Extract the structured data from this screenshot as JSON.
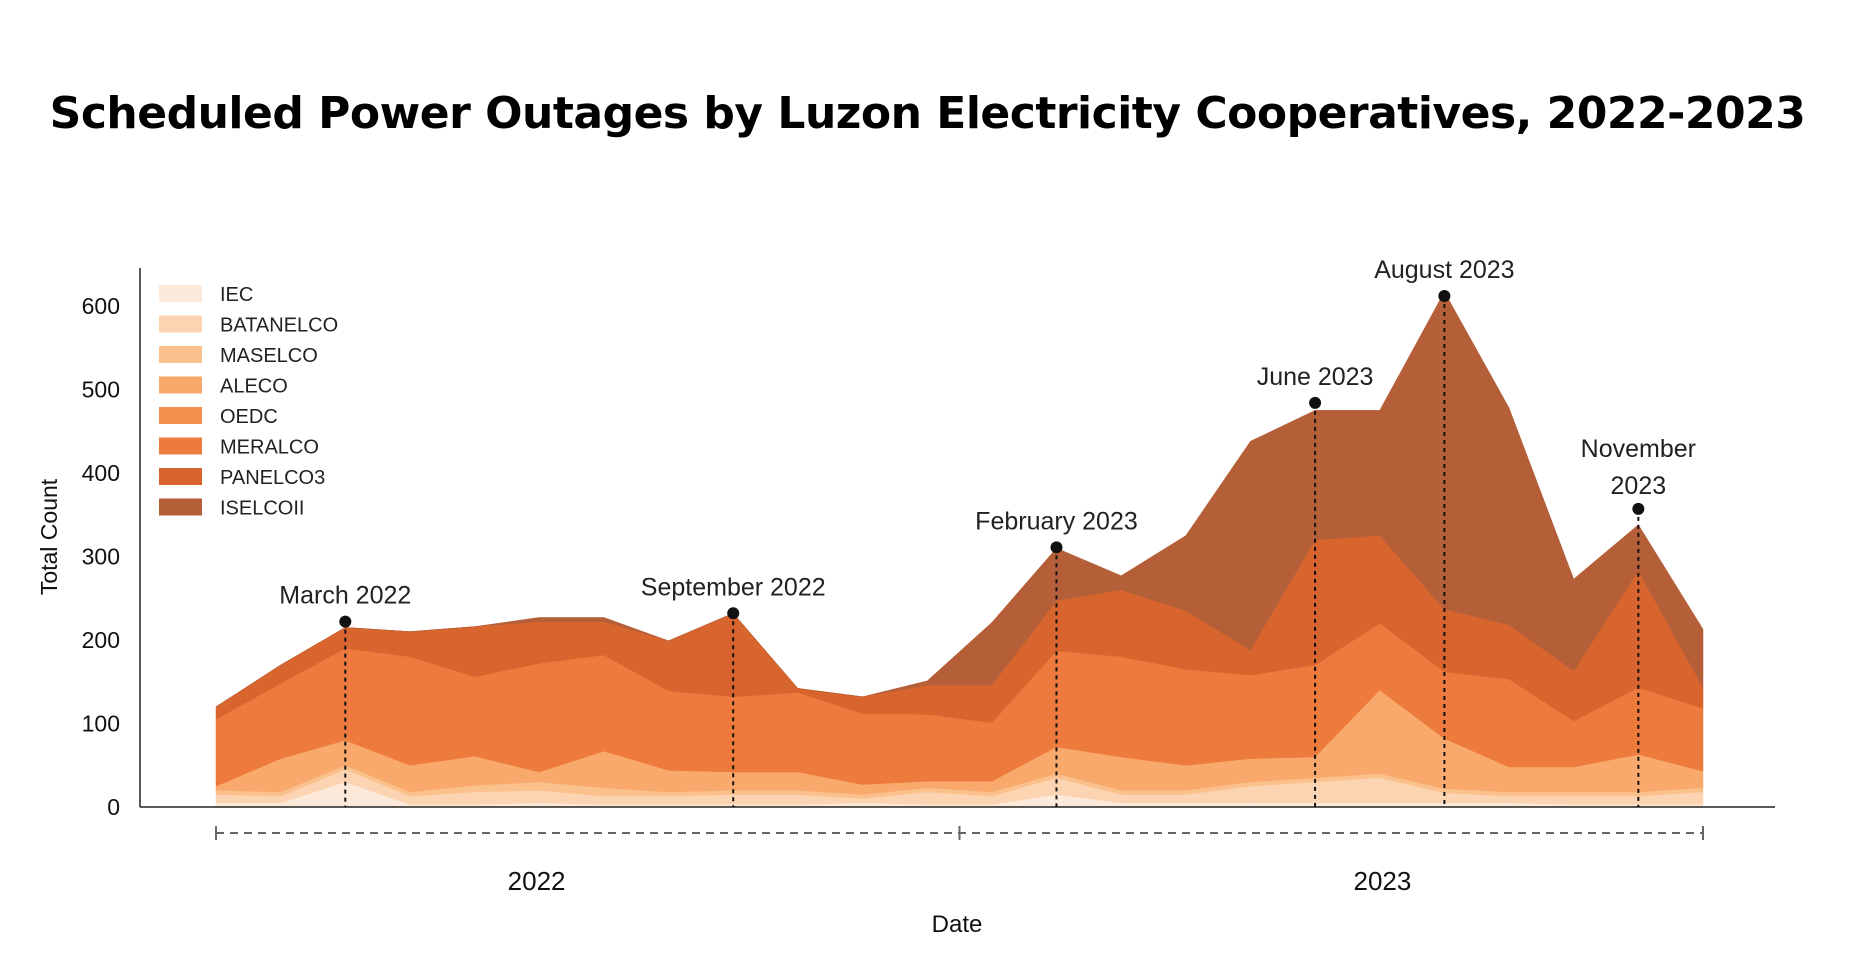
{
  "chart_data": {
    "type": "area",
    "title": "Scheduled Power Outages by Luzon Electricity Cooperatives, 2022-2023",
    "xlabel": "Date",
    "ylabel": "Total Count",
    "ylim": [
      0,
      650
    ],
    "yticks": [
      "0",
      "100",
      "200",
      "300",
      "400",
      "500",
      "600"
    ],
    "x": [
      "2022-01",
      "2022-02",
      "2022-03",
      "2022-04",
      "2022-05",
      "2022-06",
      "2022-07",
      "2022-08",
      "2022-09",
      "2022-10",
      "2022-11",
      "2022-12",
      "2023-01",
      "2023-02",
      "2023-03",
      "2023-04",
      "2023-05",
      "2023-06",
      "2023-07",
      "2023-08",
      "2023-09",
      "2023-10",
      "2023-11",
      "2023-12"
    ],
    "year_labels": [
      {
        "label": "2022",
        "start": "2022-01",
        "end": "2022-12"
      },
      {
        "label": "2023",
        "start": "2023-01",
        "end": "2023-12"
      }
    ],
    "legend_position": "top-left",
    "series": [
      {
        "name": "IEC",
        "color": "#fde9d9",
        "values": [
          5,
          5,
          30,
          3,
          3,
          5,
          3,
          3,
          3,
          3,
          5,
          3,
          3,
          15,
          5,
          5,
          5,
          5,
          5,
          5,
          5,
          3,
          3,
          3
        ]
      },
      {
        "name": "BATANELCO",
        "color": "#fcd4b2",
        "values": [
          10,
          8,
          15,
          10,
          15,
          15,
          10,
          10,
          12,
          12,
          5,
          15,
          10,
          20,
          10,
          10,
          20,
          25,
          30,
          12,
          8,
          10,
          10,
          15
        ]
      },
      {
        "name": "MASELCO",
        "color": "#fbc18c",
        "values": [
          5,
          5,
          5,
          5,
          8,
          10,
          10,
          5,
          5,
          5,
          5,
          5,
          5,
          5,
          5,
          5,
          5,
          5,
          5,
          5,
          5,
          5,
          5,
          5
        ]
      },
      {
        "name": "ALECO",
        "color": "#f8a96b",
        "values": [
          5,
          40,
          30,
          32,
          35,
          12,
          44,
          26,
          22,
          22,
          12,
          8,
          13,
          32,
          40,
          30,
          28,
          25,
          100,
          60,
          30,
          30,
          45,
          20
        ]
      },
      {
        "name": "OEDC",
        "color": "#f4914c",
        "values": [
          0,
          0,
          0,
          0,
          0,
          0,
          0,
          0,
          0,
          0,
          0,
          0,
          0,
          0,
          0,
          0,
          0,
          0,
          0,
          0,
          0,
          0,
          0,
          0
        ]
      },
      {
        "name": "MERALCO",
        "color": "#ec7b3d",
        "values": [
          80,
          90,
          110,
          130,
          95,
          130,
          115,
          95,
          90,
          95,
          85,
          80,
          70,
          115,
          120,
          115,
          100,
          110,
          80,
          80,
          105,
          55,
          80,
          75
        ]
      },
      {
        "name": "PANELCO3",
        "color": "#d9652e",
        "values": [
          15,
          22,
          25,
          30,
          60,
          50,
          40,
          60,
          100,
          5,
          20,
          35,
          45,
          60,
          80,
          70,
          30,
          150,
          105,
          75,
          65,
          60,
          140,
          25
        ]
      },
      {
        "name": "ISELCOII",
        "color": "#b55f39",
        "values": [
          0,
          0,
          0,
          0,
          0,
          5,
          5,
          0,
          0,
          0,
          0,
          5,
          75,
          63,
          17,
          90,
          250,
          155,
          150,
          380,
          260,
          110,
          55,
          70
        ]
      }
    ],
    "annotations": [
      {
        "label": "March 2022",
        "x": "2022-03",
        "y": 222
      },
      {
        "label": "September 2022",
        "x": "2022-09",
        "y": 232
      },
      {
        "label": "February 2023",
        "x": "2023-02",
        "y": 311
      },
      {
        "label": "June 2023",
        "x": "2023-06",
        "y": 484
      },
      {
        "label": "August 2023",
        "x": "2023-08",
        "y": 612
      },
      {
        "label": "November 2023",
        "x": "2023-11",
        "y": 357
      }
    ]
  }
}
